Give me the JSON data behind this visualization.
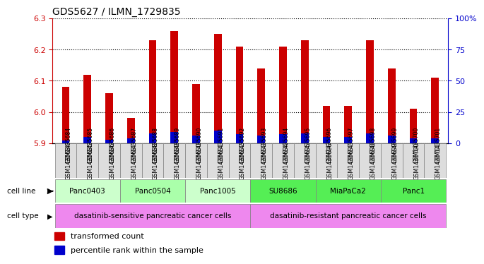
{
  "title": "GDS5627 / ILMN_1729835",
  "samples": [
    "GSM1435684",
    "GSM1435685",
    "GSM1435686",
    "GSM1435687",
    "GSM1435688",
    "GSM1435689",
    "GSM1435690",
    "GSM1435691",
    "GSM1435692",
    "GSM1435693",
    "GSM1435694",
    "GSM1435695",
    "GSM1435696",
    "GSM1435697",
    "GSM1435698",
    "GSM1435699",
    "GSM1435700",
    "GSM1435701"
  ],
  "transformed_count": [
    6.08,
    6.12,
    6.06,
    5.98,
    6.23,
    6.26,
    6.09,
    6.25,
    6.21,
    6.14,
    6.21,
    6.23,
    6.02,
    6.02,
    6.23,
    6.14,
    6.01,
    6.11
  ],
  "percentile_rank": [
    2,
    5,
    3,
    4,
    8,
    9,
    6,
    10,
    7,
    6,
    7,
    8,
    5,
    5,
    8,
    6,
    4,
    4
  ],
  "cell_lines": [
    {
      "name": "Panc0403",
      "start": 0,
      "end": 3,
      "color": "#ccffcc"
    },
    {
      "name": "Panc0504",
      "start": 3,
      "end": 6,
      "color": "#aaffaa"
    },
    {
      "name": "Panc1005",
      "start": 6,
      "end": 9,
      "color": "#ccffcc"
    },
    {
      "name": "SU8686",
      "start": 9,
      "end": 12,
      "color": "#55ee55"
    },
    {
      "name": "MiaPaCa2",
      "start": 12,
      "end": 15,
      "color": "#55ee55"
    },
    {
      "name": "Panc1",
      "start": 15,
      "end": 18,
      "color": "#55ee55"
    }
  ],
  "cell_type_sensitive": {
    "label": "dasatinib-sensitive pancreatic cancer cells",
    "start": 0,
    "end": 9,
    "color": "#ee88ee"
  },
  "cell_type_resistant": {
    "label": "dasatinib-resistant pancreatic cancer cells",
    "start": 9,
    "end": 18,
    "color": "#ee88ee"
  },
  "ylim": [
    5.9,
    6.3
  ],
  "yticks": [
    5.9,
    6.0,
    6.1,
    6.2,
    6.3
  ],
  "bar_color": "#cc0000",
  "percentile_color": "#0000cc",
  "right_yticks": [
    0,
    25,
    50,
    75,
    100
  ],
  "right_ylabels": [
    "0",
    "25",
    "50",
    "75",
    "100%"
  ],
  "tick_label_color": "#cc0000",
  "right_tick_color": "#0000cc"
}
